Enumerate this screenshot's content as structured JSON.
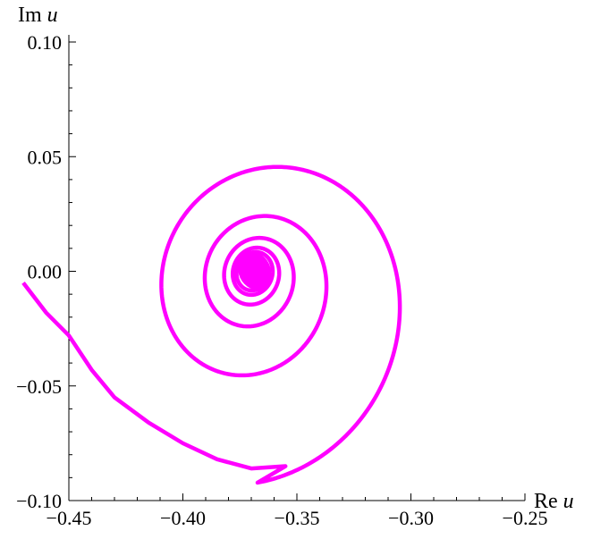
{
  "chart_data": {
    "type": "line",
    "title": "",
    "xlabel": {
      "prefix": "Re",
      "var": "u"
    },
    "ylabel": {
      "prefix": "Im",
      "var": "u"
    },
    "xlim": [
      -0.45,
      -0.25
    ],
    "ylim": [
      -0.1,
      0.1
    ],
    "x_ticks": [
      -0.45,
      -0.4,
      -0.35,
      -0.3,
      -0.25
    ],
    "x_tick_labels": [
      "−0.45",
      "−0.40",
      "−0.35",
      "−0.30",
      "−0.25"
    ],
    "y_ticks": [
      0.1,
      0.05,
      0.0,
      -0.05,
      -0.1
    ],
    "y_tick_labels": [
      "0.10",
      "0.05",
      "0.00",
      "−0.05",
      "−0.10"
    ],
    "grid": false,
    "series": [
      {
        "color": "#ff00ff",
        "description_points": [
          [
            -0.45,
            -0.028
          ],
          [
            -0.43,
            -0.055
          ],
          [
            -0.4,
            -0.075
          ],
          [
            -0.37,
            -0.086
          ],
          [
            -0.34,
            -0.081
          ],
          [
            -0.313,
            -0.05
          ],
          [
            -0.304,
            0.005
          ],
          [
            -0.32,
            0.043
          ],
          [
            -0.37,
            0.059
          ],
          [
            -0.408,
            0.043
          ],
          [
            -0.419,
            0.013
          ],
          [
            -0.406,
            -0.022
          ],
          [
            -0.365,
            -0.043
          ],
          [
            -0.335,
            -0.022
          ],
          [
            -0.33,
            0.005
          ],
          [
            -0.355,
            0.03
          ],
          [
            -0.372,
            0.034
          ],
          [
            -0.382,
            0.027
          ]
        ],
        "spiral_center": [
          -0.369,
          0.0
        ]
      }
    ]
  }
}
